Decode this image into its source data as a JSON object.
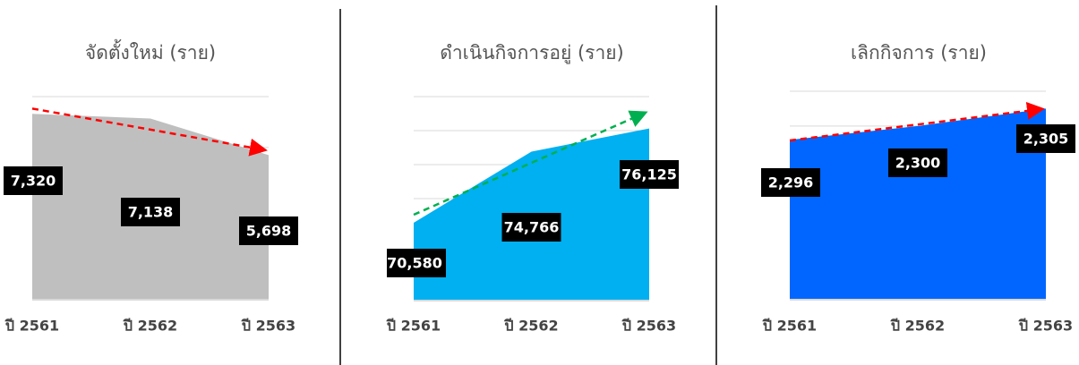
{
  "chart_data": [
    {
      "type": "area",
      "title": "จัดตั้งใหม่ (ราย)",
      "categories": [
        "ปี 2561",
        "ปี 2562",
        "ปี 2563"
      ],
      "values": [
        7320,
        7138,
        5698
      ],
      "value_labels": [
        "7,320",
        "7,138",
        "5,698"
      ],
      "color": "#bfbfbf",
      "ylim": [
        0,
        8000
      ],
      "yticks": [
        0,
        2000,
        4000,
        6000,
        8000
      ],
      "grid": true,
      "trend_color": "#ff0000"
    },
    {
      "type": "area",
      "title": "ดำเนินกิจการอยู่ (ราย)",
      "categories": [
        "ปี 2561",
        "ปี 2562",
        "ปี 2563"
      ],
      "values": [
        70580,
        74766,
        76125
      ],
      "value_labels": [
        "70,580",
        "74,766",
        "76,125"
      ],
      "color": "#00b0f0",
      "ylim": [
        66000,
        78000
      ],
      "yticks": [
        66000,
        68000,
        70000,
        72000,
        74000,
        76000,
        78000
      ],
      "grid": true,
      "trend_color": "#00b050"
    },
    {
      "type": "area",
      "title": "เลิกกิจการ (ราย)",
      "categories": [
        "ปี 2561",
        "ปี 2562",
        "ปี 2563"
      ],
      "values": [
        2296,
        2300,
        2305
      ],
      "value_labels": [
        "2,296",
        "2,300",
        "2,305"
      ],
      "color": "#0066ff",
      "ylim": [
        2250,
        2310
      ],
      "yticks": [
        2250,
        2260,
        2270,
        2280,
        2290,
        2300,
        2310
      ],
      "grid": true,
      "trend_color": "#ff0000"
    }
  ]
}
